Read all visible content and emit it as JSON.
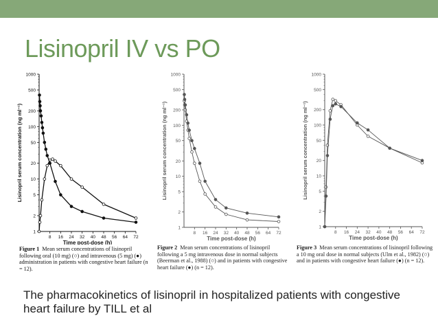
{
  "slide": {
    "title": "Lisinopril IV vs PO",
    "footer": "The pharmacokinetics of lisinopril in hospitalized patients with congestive heart failure by TILL et al",
    "accent_color": "#86a878",
    "title_color": "#6d9a5a"
  },
  "chart_data": [
    {
      "type": "line",
      "ylabel": "Lisinopril serum concentration (ng ml⁻¹)",
      "xlabel": "Time post-dose (h)",
      "x_ticks": [
        "8",
        "16",
        "24",
        "32",
        "40",
        "48",
        "56",
        "64",
        "72"
      ],
      "y_ticks": [
        "1000",
        "500",
        "200",
        "100",
        "50",
        "20",
        "10",
        "5",
        "2",
        "1"
      ],
      "xlim": [
        0,
        72
      ],
      "ylim": [
        1,
        1000
      ],
      "yscale": "log",
      "series": [
        {
          "marker": "open-circle",
          "x": [
            0,
            0.5,
            1,
            2,
            4,
            6,
            8,
            10,
            12,
            16,
            24,
            32,
            48,
            72
          ],
          "y": [
            1,
            1.5,
            2,
            4,
            10,
            18,
            23,
            24,
            22,
            18,
            10,
            7,
            3.3,
            1.8
          ]
        },
        {
          "marker": "filled-circle",
          "x": [
            0.25,
            0.5,
            0.75,
            1,
            1.5,
            2,
            2.5,
            3,
            4,
            5,
            6,
            8,
            12,
            16,
            24,
            32,
            48,
            72
          ],
          "y": [
            400,
            300,
            250,
            200,
            160,
            120,
            95,
            75,
            50,
            37,
            28,
            20,
            9,
            5,
            3,
            2.4,
            1.8,
            1.5
          ]
        }
      ],
      "caption_label": "Figure 1",
      "caption_text": "Mean serum concentrations of lisinopril following oral (10 mg) (○) and intravenous (5 mg) (●) administration in patients with congestive heart failure (n = 12)."
    },
    {
      "type": "line",
      "ylabel": "Lisinopril serum concentration (ng ml⁻¹)",
      "xlabel": "Time post-dose (h)",
      "x_ticks": [
        "8",
        "16",
        "24",
        "32",
        "40",
        "48",
        "56",
        "64",
        "72"
      ],
      "y_ticks": [
        "1000",
        "500",
        "200",
        "100",
        "50",
        "20",
        "10",
        "5",
        "2",
        "1"
      ],
      "xlim": [
        0,
        72
      ],
      "ylim": [
        1,
        1000
      ],
      "yscale": "log",
      "series": [
        {
          "marker": "open-circle",
          "x": [
            0.25,
            0.5,
            1,
            2,
            3,
            4,
            6,
            8,
            12,
            16,
            24,
            32,
            48,
            72
          ],
          "y": [
            300,
            250,
            200,
            120,
            80,
            55,
            30,
            18,
            8,
            4.5,
            2.5,
            1.8,
            1.4,
            1.3
          ]
        },
        {
          "marker": "filled-circle",
          "x": [
            0.25,
            0.5,
            1,
            2,
            3,
            4,
            6,
            8,
            12,
            16,
            24,
            32,
            48,
            72
          ],
          "y": [
            400,
            320,
            250,
            160,
            110,
            80,
            50,
            35,
            18,
            8,
            3.5,
            2.4,
            1.9,
            1.6
          ]
        }
      ],
      "caption_label": "Figure 2",
      "caption_text": "Mean serum concentrations of lisinopril following a 5 mg intravenous dose in normal subjects (Beerman et al., 1988) (○) and in patients with congestive heart failure (●) (n = 12)."
    },
    {
      "type": "line",
      "ylabel": "Lisinopril serum concentration (ng ml⁻¹)",
      "xlabel": "Time post-dose (h)",
      "x_ticks": [
        "8",
        "16",
        "24",
        "32",
        "40",
        "48",
        "56",
        "64",
        "72"
      ],
      "y_ticks": [
        "1000",
        "500",
        "200",
        "100",
        "50",
        "20",
        "10",
        "5",
        "2",
        "1"
      ],
      "xlim": [
        0,
        72
      ],
      "ylim": [
        1,
        1000
      ],
      "yscale": "log",
      "series": [
        {
          "marker": "open-circle",
          "x": [
            0,
            1,
            2,
            4,
            6,
            8,
            12,
            24,
            32,
            48,
            72
          ],
          "y": [
            1,
            6,
            40,
            190,
            320,
            300,
            250,
            100,
            60,
            35,
            18
          ]
        },
        {
          "marker": "filled-circle",
          "x": [
            0,
            1,
            2,
            4,
            6,
            8,
            12,
            24,
            32,
            48,
            72
          ],
          "y": [
            1,
            4,
            25,
            130,
            240,
            260,
            230,
            110,
            80,
            35,
            20
          ]
        }
      ],
      "caption_label": "Figure 3",
      "caption_text": "Mean serum concentrations of lisinopril following a 10 mg oral dose in normal subjects (Ulm et al., 1982) (○) and in patients with congestive heart failure (●) (n = 12)."
    }
  ]
}
